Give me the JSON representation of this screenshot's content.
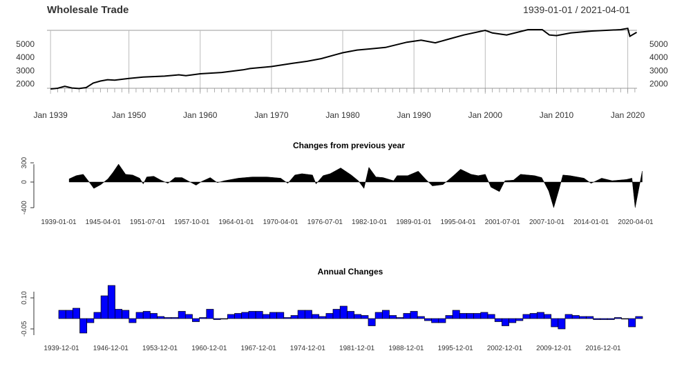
{
  "chart_data": [
    {
      "type": "line",
      "title": "Wholesale Trade",
      "date_range": "1939-01-01 / 2021-04-01",
      "ylim": [
        1600,
        6000
      ],
      "y_ticks": [
        "5000",
        "4000",
        "3000",
        "2000"
      ],
      "y_tick_values": [
        5000,
        4000,
        3000,
        2000
      ],
      "x_ticks": [
        "Jan 1939",
        "Jan 1950",
        "Jan 1960",
        "Jan 1970",
        "Jan 1980",
        "Jan 1990",
        "Jan 2000",
        "Jan 2010",
        "Jan 2020"
      ],
      "x_tick_years": [
        1939,
        1950,
        1960,
        1970,
        1980,
        1990,
        2000,
        2010,
        2020
      ],
      "grid": true,
      "series": [
        {
          "x": [
            1939,
            1940,
            1941,
            1942,
            1943,
            1944,
            1945,
            1946,
            1947,
            1948,
            1950,
            1952,
            1955,
            1957,
            1958,
            1960,
            1963,
            1966,
            1967,
            1970,
            1973,
            1975,
            1977,
            1979,
            1980,
            1982,
            1984,
            1986,
            1989,
            1991,
            1993,
            1995,
            1997,
            2000,
            2001,
            2003,
            2006,
            2008,
            2009,
            2010,
            2012,
            2015,
            2019,
            2020,
            2020.3,
            2021.25
          ],
          "y": [
            1550,
            1600,
            1750,
            1620,
            1580,
            1650,
            2000,
            2150,
            2250,
            2220,
            2350,
            2450,
            2520,
            2620,
            2560,
            2700,
            2800,
            3000,
            3100,
            3250,
            3500,
            3650,
            3850,
            4150,
            4300,
            4500,
            4600,
            4700,
            5100,
            5250,
            5050,
            5350,
            5650,
            6000,
            5800,
            5650,
            6050,
            6050,
            5650,
            5600,
            5800,
            5950,
            6050,
            6150,
            5550,
            5850
          ]
        }
      ]
    },
    {
      "type": "area",
      "title": "Changes from previous year",
      "ylim": [
        -450,
        320
      ],
      "y_ticks": [
        "300",
        "0",
        "-400"
      ],
      "y_tick_values": [
        300,
        0,
        -400
      ],
      "x_ticks": [
        "1939-01-01",
        "1945-04-01",
        "1951-07-01",
        "1957-10-01",
        "1964-01-01",
        "1970-04-01",
        "1976-07-01",
        "1982-10-01",
        "1989-01-01",
        "1995-04-01",
        "2001-07-01",
        "2007-10-01",
        "2014-01-01",
        "2020-04-01"
      ],
      "x_tick_years": [
        1939,
        1945.25,
        1951.5,
        1957.75,
        1964,
        1970.25,
        1976.5,
        1982.75,
        1989,
        1995.25,
        2001.5,
        2007.75,
        2014,
        2020.25
      ],
      "series": [
        {
          "x": [
            1940,
            1941,
            1942,
            1942.7,
            1943.5,
            1944.5,
            1945.5,
            1946.2,
            1947,
            1948,
            1949,
            1950,
            1950.5,
            1951,
            1952,
            1953,
            1954,
            1955,
            1956,
            1957,
            1958,
            1958.8,
            1960,
            1961,
            1962,
            1964,
            1966,
            1968,
            1970,
            1971,
            1972,
            1973,
            1974.5,
            1975,
            1976,
            1977,
            1978.5,
            1980,
            1981,
            1981.8,
            1982.5,
            1983.5,
            1984.5,
            1986,
            1986.5,
            1988,
            1989.5,
            1990.5,
            1991.5,
            1993,
            1994.5,
            1995.5,
            1997,
            1998,
            1999,
            1999.8,
            2001,
            2001.8,
            2003,
            2004,
            2006,
            2007,
            2008,
            2008.7,
            2009.5,
            2010,
            2011,
            2013,
            2014,
            2015.5,
            2017,
            2019,
            2019.8,
            2020.25,
            2020.6,
            2021.25
          ],
          "y": [
            50,
            100,
            120,
            20,
            -100,
            -40,
            50,
            150,
            280,
            120,
            110,
            60,
            -30,
            80,
            90,
            30,
            -20,
            70,
            70,
            10,
            -50,
            10,
            70,
            -10,
            20,
            60,
            80,
            80,
            60,
            -20,
            110,
            130,
            110,
            -30,
            100,
            130,
            220,
            110,
            20,
            -100,
            230,
            80,
            70,
            20,
            100,
            100,
            170,
            50,
            -60,
            -40,
            100,
            200,
            120,
            100,
            120,
            -80,
            -150,
            20,
            30,
            120,
            100,
            70,
            -140,
            -400,
            -100,
            110,
            100,
            60,
            -20,
            60,
            20,
            40,
            60,
            -400,
            -200,
            170
          ]
        }
      ]
    },
    {
      "type": "bar",
      "title": "Annual Changes",
      "ylim": [
        -0.06,
        0.15
      ],
      "y_ticks": [
        "0.10",
        "-0.05"
      ],
      "y_tick_values": [
        0.1,
        -0.05
      ],
      "x_ticks": [
        "1939-12-01",
        "1946-12-01",
        "1953-12-01",
        "1960-12-01",
        "1967-12-01",
        "1974-12-01",
        "1981-12-01",
        "1988-12-01",
        "1995-12-01",
        "2002-12-01",
        "2009-12-01",
        "2016-12-01"
      ],
      "x_tick_years": [
        1939,
        1946,
        1953,
        1960,
        1967,
        1974,
        1981,
        1988,
        1995,
        2002,
        2009,
        2016
      ],
      "series": [
        {
          "x": [
            1939,
            1940,
            1941,
            1942,
            1943,
            1944,
            1945,
            1946,
            1947,
            1948,
            1949,
            1950,
            1951,
            1952,
            1953,
            1954,
            1955,
            1956,
            1957,
            1958,
            1959,
            1960,
            1961,
            1962,
            1963,
            1964,
            1965,
            1966,
            1967,
            1968,
            1969,
            1970,
            1971,
            1972,
            1973,
            1974,
            1975,
            1976,
            1977,
            1978,
            1979,
            1980,
            1981,
            1982,
            1983,
            1984,
            1985,
            1986,
            1987,
            1988,
            1989,
            1990,
            1991,
            1992,
            1993,
            1994,
            1995,
            1996,
            1997,
            1998,
            1999,
            2000,
            2001,
            2002,
            2003,
            2004,
            2005,
            2006,
            2007,
            2008,
            2009,
            2010,
            2011,
            2012,
            2013,
            2014,
            2015,
            2016,
            2017,
            2018,
            2019,
            2020,
            2021
          ],
          "y": [
            0.04,
            0.04,
            0.05,
            -0.07,
            -0.02,
            0.03,
            0.11,
            0.16,
            0.045,
            0.04,
            -0.02,
            0.03,
            0.035,
            0.025,
            0.01,
            0.005,
            0.005,
            0.035,
            0.02,
            -0.015,
            0.005,
            0.045,
            -0.005,
            0.0,
            0.02,
            0.025,
            0.03,
            0.035,
            0.035,
            0.02,
            0.03,
            0.03,
            0.005,
            0.015,
            0.04,
            0.04,
            0.02,
            0.01,
            0.025,
            0.045,
            0.06,
            0.035,
            0.02,
            0.015,
            -0.035,
            0.03,
            0.04,
            0.015,
            0.005,
            0.025,
            0.035,
            0.01,
            -0.01,
            -0.02,
            -0.02,
            0.015,
            0.04,
            0.025,
            0.025,
            0.025,
            0.03,
            0.02,
            -0.015,
            -0.035,
            -0.02,
            -0.01,
            0.02,
            0.025,
            0.03,
            0.02,
            -0.04,
            -0.05,
            0.02,
            0.015,
            0.01,
            0.01,
            -0.005,
            -0.005,
            -0.005,
            0.005,
            0.0,
            -0.04,
            0.01
          ]
        }
      ]
    }
  ]
}
